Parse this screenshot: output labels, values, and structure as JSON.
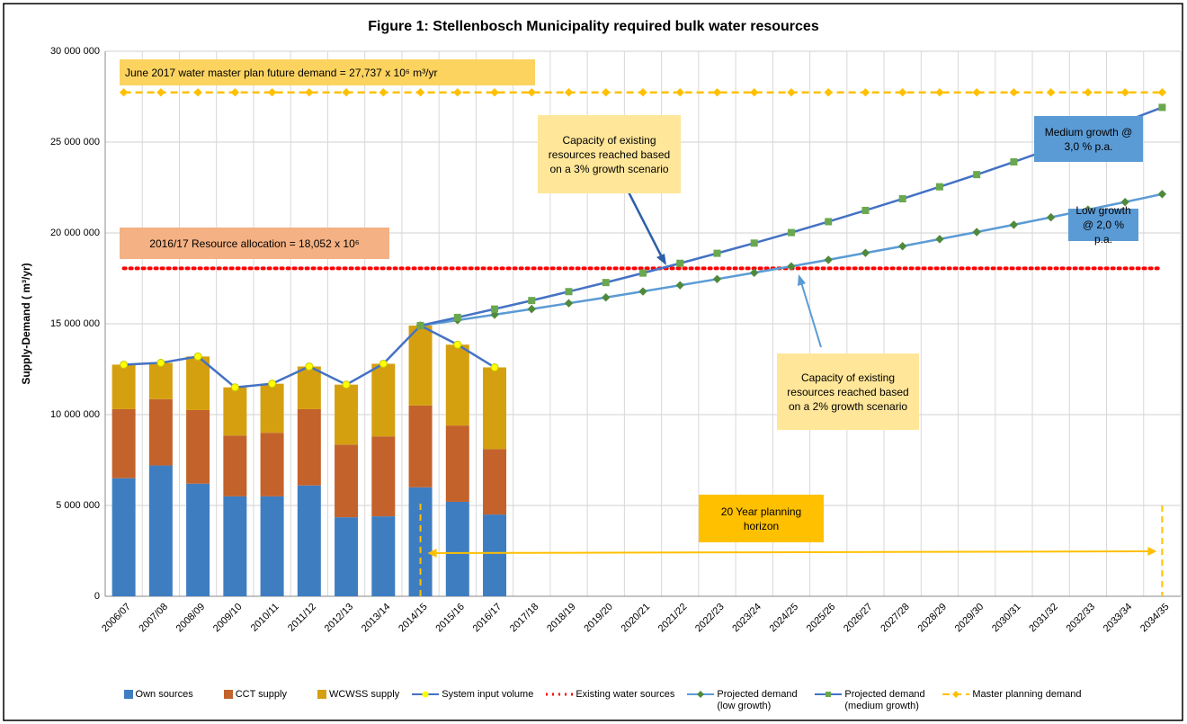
{
  "chart_data": {
    "type": "bar",
    "title": "Figure 1: Stellenbosch Municipality required bulk water resources",
    "y_label": "Supply-Demand ( m³/yr)",
    "categories": [
      "2006/07",
      "2007/08",
      "2008/09",
      "2009/10",
      "2010/11",
      "2011/12",
      "2012/13",
      "2013/14",
      "2014/15",
      "2015/16",
      "2016/17",
      "2017/18",
      "2018/19",
      "2019/20",
      "2020/21",
      "2021/22",
      "2022/23",
      "2023/24",
      "2024/25",
      "2025/26",
      "2026/27",
      "2027/28",
      "2028/29",
      "2029/30",
      "2030/31",
      "2031/32",
      "2032/33",
      "2033/34",
      "2034/35"
    ],
    "ylim": [
      0,
      30000000
    ],
    "yticks": [
      0,
      {
        "value": 5000000,
        "label": "5 000 000"
      },
      {
        "value": 10000000,
        "label": "10 000 000"
      },
      {
        "value": 15000000,
        "label": "15 000 000"
      },
      {
        "value": 20000000,
        "label": "20 000 000"
      },
      {
        "value": 25000000,
        "label": "25 000 000"
      },
      {
        "value": 30000000,
        "label": "30 000 000"
      }
    ],
    "grid": true,
    "series": [
      {
        "name": "Own sources",
        "type": "bar",
        "color": "#3f7dc1",
        "values": [
          6500000,
          7200000,
          6200000,
          5500000,
          5500000,
          6100000,
          4350000,
          4400000,
          6000000,
          5200000,
          4500000,
          null,
          null,
          null,
          null,
          null,
          null,
          null,
          null,
          null,
          null,
          null,
          null,
          null,
          null,
          null,
          null,
          null,
          null
        ]
      },
      {
        "name": "CCT supply",
        "type": "bar",
        "color": "#c3622b",
        "values": [
          3800000,
          3650000,
          4050000,
          3350000,
          3500000,
          4200000,
          4000000,
          4400000,
          4500000,
          4200000,
          3600000,
          null,
          null,
          null,
          null,
          null,
          null,
          null,
          null,
          null,
          null,
          null,
          null,
          null,
          null,
          null,
          null,
          null,
          null
        ]
      },
      {
        "name": "WCWSS supply",
        "type": "bar",
        "color": "#d5a00f",
        "values": [
          2450000,
          2000000,
          2950000,
          2650000,
          2700000,
          2350000,
          3300000,
          4000000,
          4400000,
          4450000,
          4500000,
          null,
          null,
          null,
          null,
          null,
          null,
          null,
          null,
          null,
          null,
          null,
          null,
          null,
          null,
          null,
          null,
          null,
          null
        ]
      },
      {
        "name": "System input volume",
        "type": "line",
        "color": "#4472c4",
        "marker": "circle",
        "marker_color": "#ffff00",
        "values": [
          12750000,
          12850000,
          13200000,
          11500000,
          11700000,
          12650000,
          11650000,
          12800000,
          14900000,
          13850000,
          12600000,
          null,
          null,
          null,
          null,
          null,
          null,
          null,
          null,
          null,
          null,
          null,
          null,
          null,
          null,
          null,
          null,
          null,
          null
        ]
      },
      {
        "name": "Existing water sources",
        "type": "line",
        "color": "#ff0000",
        "style": "dotted",
        "values": [
          18052000,
          18052000,
          18052000,
          18052000,
          18052000,
          18052000,
          18052000,
          18052000,
          18052000,
          18052000,
          18052000,
          18052000,
          18052000,
          18052000,
          18052000,
          18052000,
          18052000,
          18052000,
          18052000,
          18052000,
          18052000,
          18052000,
          18052000,
          18052000,
          18052000,
          18052000,
          18052000,
          18052000,
          18052000
        ]
      },
      {
        "name": "Projected demand (low growth)",
        "type": "line",
        "color": "#5b9bd5",
        "marker": "diamond",
        "marker_color": "#4f8a3c",
        "values": [
          null,
          null,
          null,
          null,
          null,
          null,
          null,
          null,
          14900000,
          15200000,
          15500000,
          15810000,
          16130000,
          16450000,
          16780000,
          17120000,
          17460000,
          17810000,
          18160000,
          18520000,
          18900000,
          19270000,
          19660000,
          20050000,
          20450000,
          20860000,
          21280000,
          21700000,
          22140000
        ]
      },
      {
        "name": "Projected demand (medium growth)",
        "type": "line",
        "color": "#4472c4",
        "marker": "square",
        "marker_color": "#6aa84f",
        "values": [
          null,
          null,
          null,
          null,
          null,
          null,
          null,
          null,
          14900000,
          15350000,
          15810000,
          16280000,
          16770000,
          17270000,
          17790000,
          18330000,
          18880000,
          19440000,
          20020000,
          20620000,
          21240000,
          21880000,
          22540000,
          23210000,
          23910000,
          24630000,
          25370000,
          26130000,
          26910000
        ]
      },
      {
        "name": "Master planning demand",
        "type": "line",
        "color": "#ffc000",
        "style": "dashed",
        "marker": "diamond",
        "marker_color": "#ffc000",
        "values": [
          27737000,
          27737000,
          27737000,
          27737000,
          27737000,
          27737000,
          27737000,
          27737000,
          27737000,
          27737000,
          27737000,
          27737000,
          27737000,
          27737000,
          27737000,
          27737000,
          27737000,
          27737000,
          27737000,
          27737000,
          27737000,
          27737000,
          27737000,
          27737000,
          27737000,
          27737000,
          27737000,
          27737000,
          27737000
        ]
      }
    ],
    "annotations": [
      {
        "text": "June 2017 water master plan future demand = 27,737 x 10⁶ m³/yr"
      },
      {
        "text": "2016/17 Resource allocation = 18,052 x 10⁶"
      },
      {
        "text": "Capacity of existing resources reached based on a 3% growth scenario"
      },
      {
        "text": "Capacity of existing resources reached based on a 2% growth scenario"
      },
      {
        "text": "Medium growth @ 3,0 % p.a."
      },
      {
        "text": "Low growth @ 2,0 % p.a."
      },
      {
        "text": "20 Year planning horizon"
      }
    ]
  }
}
